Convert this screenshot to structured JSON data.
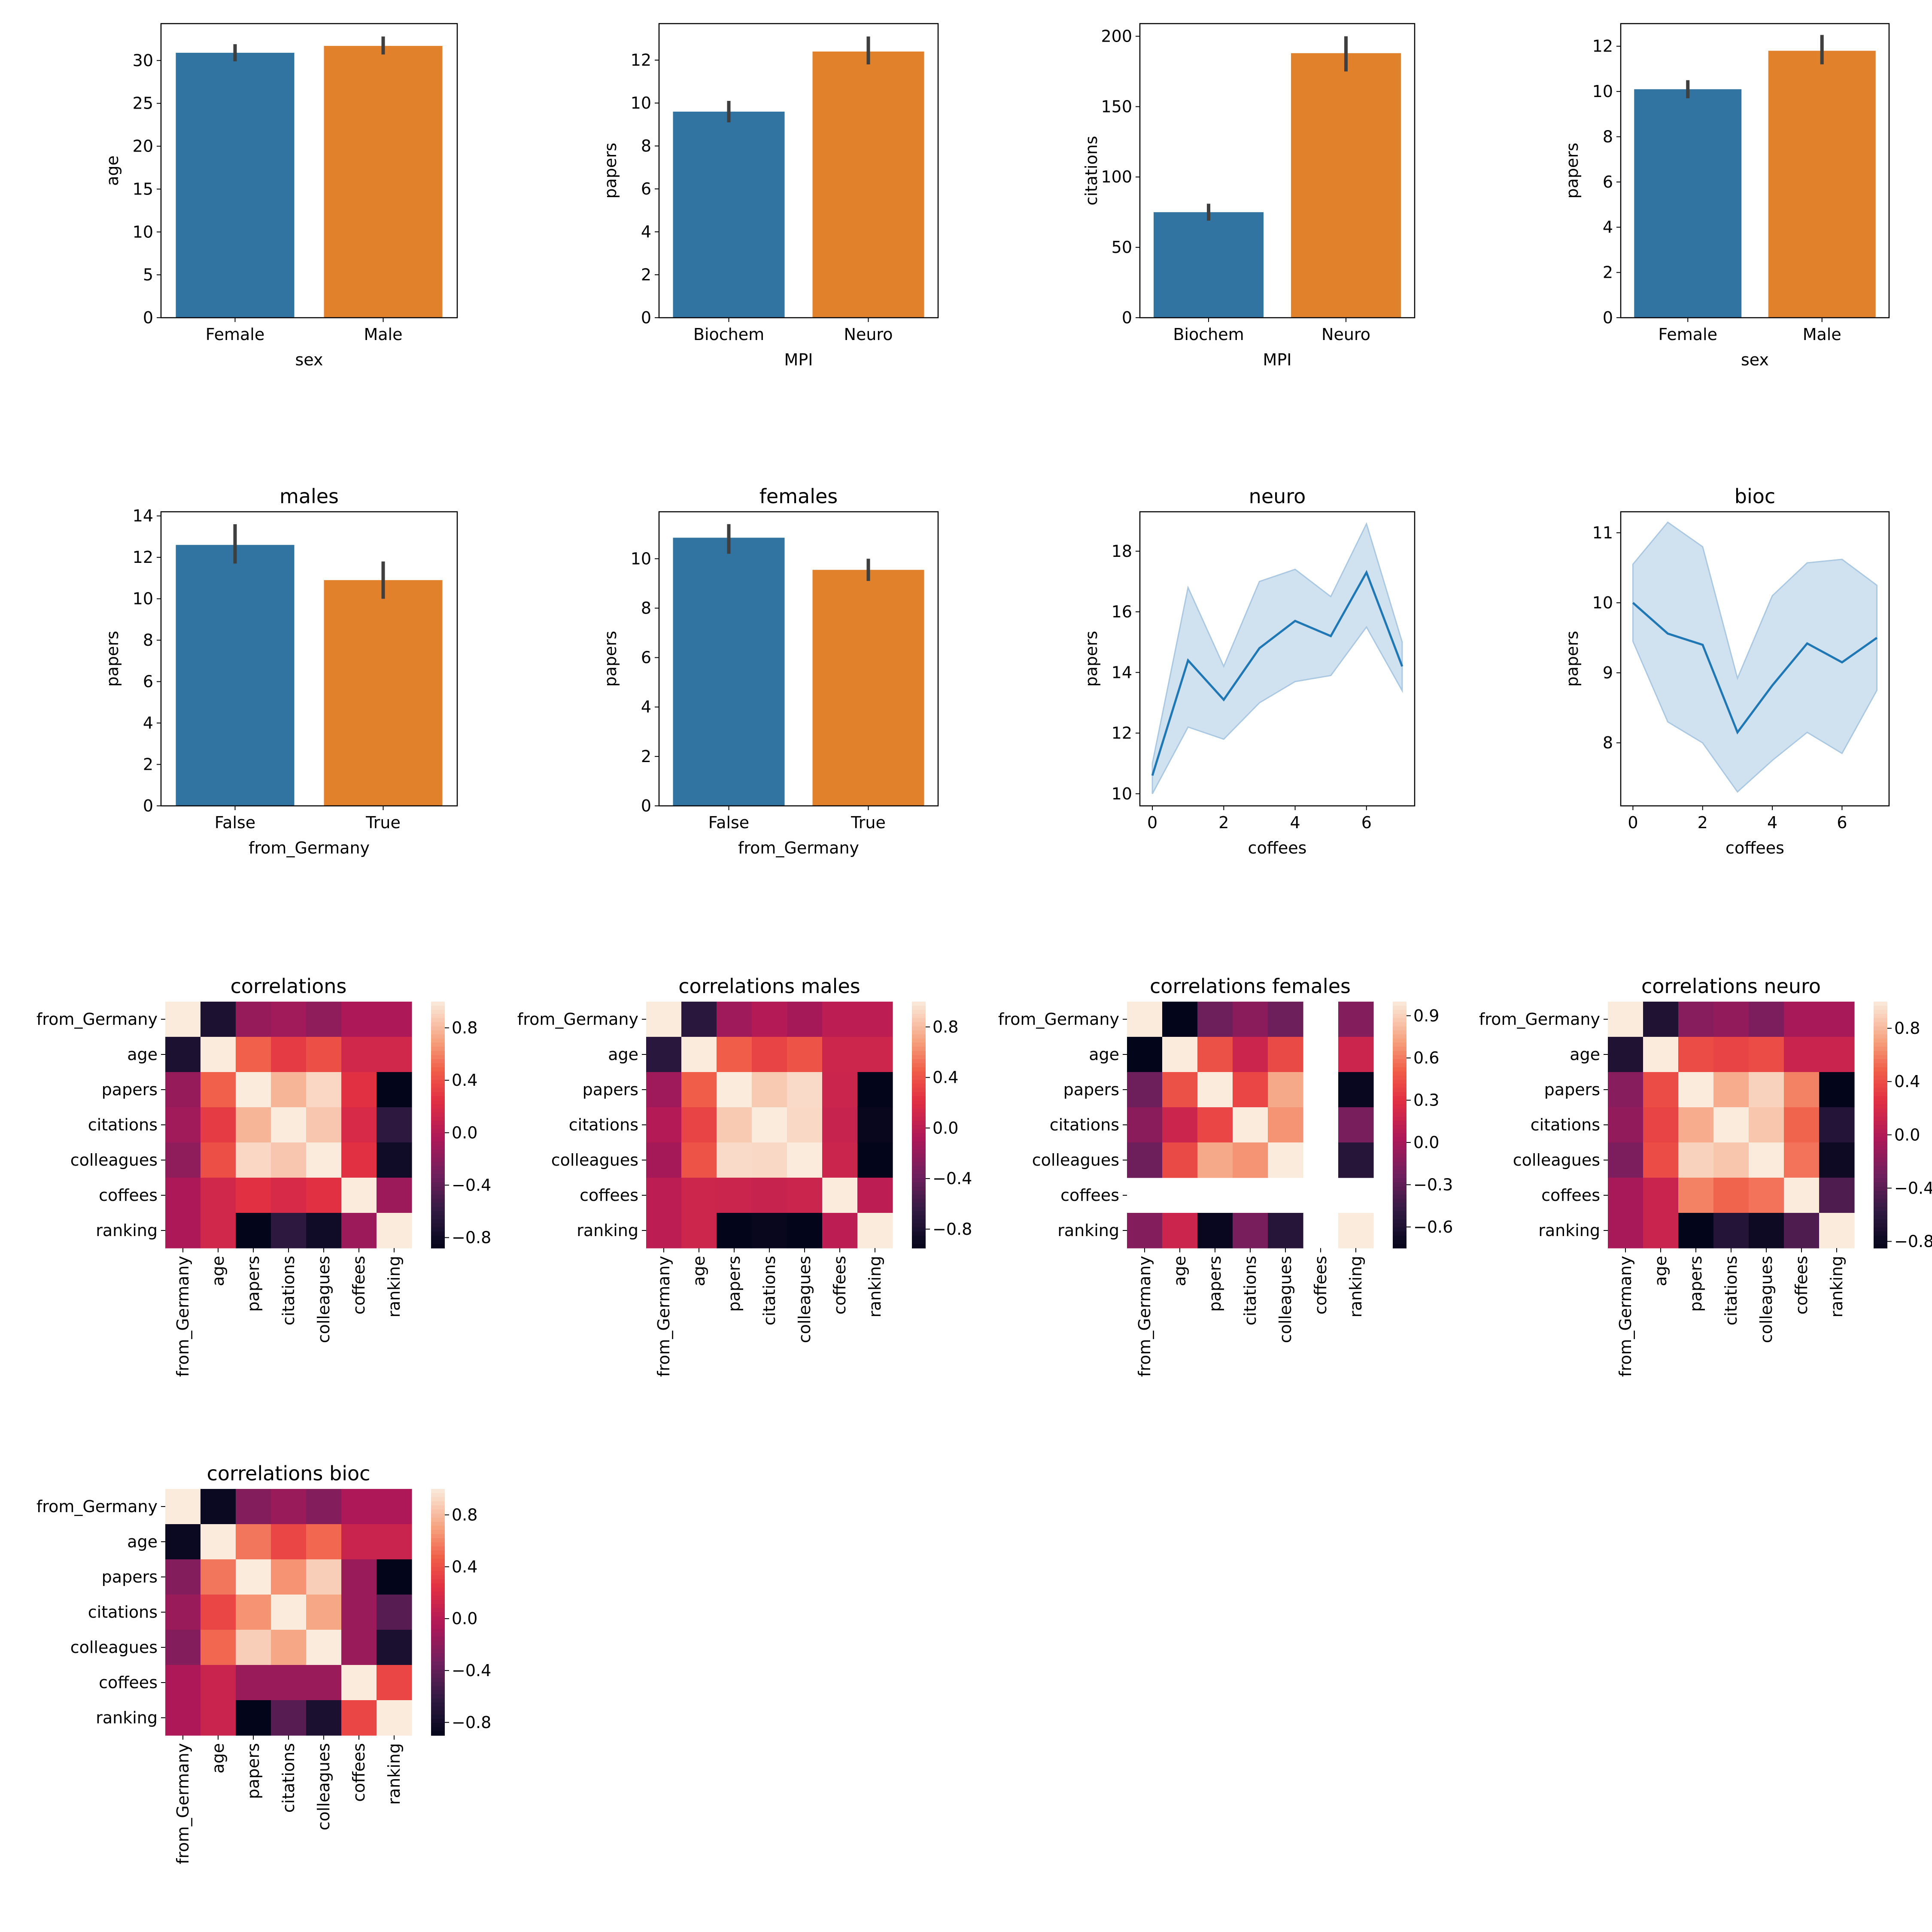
{
  "colors": {
    "blue": "#3274a1",
    "orange": "#e1812c",
    "line": "#1f77b4",
    "band": "#aac8e1",
    "errbar": "#3f3f3f",
    "palette": "rocket"
  },
  "chart_data": [
    {
      "id": "bar-age-sex",
      "type": "bar",
      "title": "",
      "xlabel": "sex",
      "ylabel": "age",
      "categories": [
        "Female",
        "Male"
      ],
      "values": [
        30.9,
        31.7
      ],
      "error_low": [
        29.9,
        30.7
      ],
      "error_high": [
        31.9,
        32.8
      ],
      "ylim": [
        0,
        34.3
      ],
      "yticks": [
        0,
        5,
        10,
        15,
        20,
        25,
        30
      ]
    },
    {
      "id": "bar-papers-mpi",
      "type": "bar",
      "title": "",
      "xlabel": "MPI",
      "ylabel": "papers",
      "categories": [
        "Biochem",
        "Neuro"
      ],
      "values": [
        9.6,
        12.4
      ],
      "error_low": [
        9.1,
        11.8
      ],
      "error_high": [
        10.1,
        13.1
      ],
      "ylim": [
        0,
        13.7
      ],
      "yticks": [
        0,
        2,
        4,
        6,
        8,
        10,
        12
      ]
    },
    {
      "id": "bar-citations-mpi",
      "type": "bar",
      "title": "",
      "xlabel": "MPI",
      "ylabel": "citations",
      "categories": [
        "Biochem",
        "Neuro"
      ],
      "values": [
        75,
        188
      ],
      "error_low": [
        69,
        175
      ],
      "error_high": [
        81,
        200
      ],
      "ylim": [
        0,
        209
      ],
      "yticks": [
        0,
        50,
        100,
        150,
        200
      ]
    },
    {
      "id": "bar-papers-sex",
      "type": "bar",
      "title": "",
      "xlabel": "sex",
      "ylabel": "papers",
      "categories": [
        "Female",
        "Male"
      ],
      "values": [
        10.1,
        11.8
      ],
      "error_low": [
        9.7,
        11.2
      ],
      "error_high": [
        10.5,
        12.5
      ],
      "ylim": [
        0,
        13.0
      ],
      "yticks": [
        0,
        2,
        4,
        6,
        8,
        10,
        12
      ]
    },
    {
      "id": "bar-males",
      "type": "bar",
      "title": "males",
      "xlabel": "from_Germany",
      "ylabel": "papers",
      "categories": [
        "False",
        "True"
      ],
      "values": [
        12.6,
        10.9
      ],
      "error_low": [
        11.7,
        10.0
      ],
      "error_high": [
        13.6,
        11.8
      ],
      "ylim": [
        0,
        14.2
      ],
      "yticks": [
        0,
        2,
        4,
        6,
        8,
        10,
        12,
        14
      ]
    },
    {
      "id": "bar-females",
      "type": "bar",
      "title": "females",
      "xlabel": "from_Germany",
      "ylabel": "papers",
      "categories": [
        "False",
        "True"
      ],
      "values": [
        10.85,
        9.55
      ],
      "error_low": [
        10.2,
        9.1
      ],
      "error_high": [
        11.4,
        10.0
      ],
      "ylim": [
        0,
        11.9
      ],
      "yticks": [
        0,
        2,
        4,
        6,
        8,
        10
      ]
    },
    {
      "id": "line-neuro",
      "type": "line",
      "title": "neuro",
      "xlabel": "coffees",
      "ylabel": "papers",
      "x": [
        0,
        1,
        2,
        3,
        4,
        5,
        6,
        7
      ],
      "y": [
        10.6,
        14.4,
        13.1,
        14.8,
        15.7,
        15.2,
        17.3,
        14.2
      ],
      "ci_low": [
        10.0,
        12.2,
        11.8,
        13.0,
        13.7,
        13.9,
        15.5,
        13.4
      ],
      "ci_high": [
        11.0,
        16.8,
        14.2,
        17.0,
        17.4,
        16.5,
        18.9,
        15.0
      ],
      "xlim": [
        -0.35,
        7.35
      ],
      "ylim": [
        9.6,
        19.3
      ],
      "xticks": [
        0,
        2,
        4,
        6
      ],
      "yticks": [
        10,
        12,
        14,
        16,
        18
      ]
    },
    {
      "id": "line-bioc",
      "type": "line",
      "title": "bioc",
      "xlabel": "coffees",
      "ylabel": "papers",
      "x": [
        0,
        1,
        2,
        3,
        4,
        5,
        6,
        7
      ],
      "y": [
        10.0,
        9.56,
        9.4,
        8.15,
        8.82,
        9.42,
        9.15,
        9.5
      ],
      "ci_low": [
        9.45,
        8.3,
        8.0,
        7.3,
        7.75,
        8.15,
        7.85,
        8.75
      ],
      "ci_high": [
        10.55,
        11.15,
        10.8,
        8.92,
        10.1,
        10.57,
        10.62,
        10.25
      ],
      "xlim": [
        -0.35,
        7.35
      ],
      "ylim": [
        7.1,
        11.3
      ],
      "xticks": [
        0,
        2,
        4,
        6
      ],
      "yticks": [
        8,
        9,
        10,
        11
      ]
    },
    {
      "id": "heat-all",
      "type": "heatmap",
      "title": "correlations",
      "labels": [
        "from_Germany",
        "age",
        "papers",
        "citations",
        "colleagues",
        "coffees",
        "ranking"
      ],
      "vmin": -0.88,
      "vmax": 1.0,
      "cbar_ticks": [
        -0.8,
        -0.4,
        0.0,
        0.4,
        0.8
      ],
      "matrix": [
        [
          1.0,
          -0.72,
          -0.15,
          -0.1,
          -0.18,
          -0.05,
          -0.05
        ],
        [
          -0.72,
          1.0,
          0.48,
          0.3,
          0.4,
          0.15,
          0.15
        ],
        [
          -0.15,
          0.48,
          1.0,
          0.78,
          0.92,
          0.25,
          -0.88
        ],
        [
          -0.1,
          0.3,
          0.78,
          1.0,
          0.85,
          0.18,
          -0.62
        ],
        [
          -0.18,
          0.4,
          0.92,
          0.85,
          1.0,
          0.25,
          -0.8
        ],
        [
          -0.05,
          0.15,
          0.25,
          0.18,
          0.25,
          1.0,
          -0.12
        ],
        [
          -0.05,
          0.15,
          -0.88,
          -0.62,
          -0.8,
          -0.12,
          1.0
        ]
      ]
    },
    {
      "id": "heat-males",
      "type": "heatmap",
      "title": "correlations males",
      "labels": [
        "from_Germany",
        "age",
        "papers",
        "citations",
        "colleagues",
        "coffees",
        "ranking"
      ],
      "vmin": -0.95,
      "vmax": 1.0,
      "cbar_ticks": [
        -0.8,
        -0.4,
        0.0,
        0.4,
        0.8
      ],
      "matrix": [
        [
          1.0,
          -0.7,
          -0.15,
          -0.05,
          -0.12,
          0.0,
          0.0
        ],
        [
          -0.7,
          1.0,
          0.45,
          0.32,
          0.4,
          0.1,
          0.1
        ],
        [
          -0.15,
          0.45,
          1.0,
          0.86,
          0.93,
          0.08,
          -0.95
        ],
        [
          -0.05,
          0.32,
          0.86,
          1.0,
          0.92,
          0.06,
          -0.92
        ],
        [
          -0.12,
          0.4,
          0.93,
          0.92,
          1.0,
          0.08,
          -0.95
        ],
        [
          0.0,
          0.1,
          0.08,
          0.06,
          0.08,
          1.0,
          0.0
        ],
        [
          0.0,
          0.1,
          -0.95,
          -0.92,
          -0.95,
          0.0,
          1.0
        ]
      ]
    },
    {
      "id": "heat-females",
      "type": "heatmap",
      "title": "correlations females",
      "labels": [
        "from_Germany",
        "age",
        "papers",
        "citations",
        "colleagues",
        "coffees",
        "ranking"
      ],
      "vmin": -0.75,
      "vmax": 1.0,
      "cbar_ticks": [
        -0.6,
        -0.3,
        0.0,
        0.3,
        0.6,
        0.9
      ],
      "matrix": [
        [
          1.0,
          -0.75,
          -0.25,
          -0.12,
          -0.25,
          null,
          -0.15
        ],
        [
          -0.75,
          1.0,
          0.45,
          0.18,
          0.42,
          null,
          0.18
        ],
        [
          -0.25,
          0.45,
          1.0,
          0.4,
          0.75,
          null,
          -0.72
        ],
        [
          -0.12,
          0.18,
          0.4,
          1.0,
          0.68,
          null,
          -0.2
        ],
        [
          -0.25,
          0.42,
          0.75,
          0.68,
          1.0,
          null,
          -0.55
        ],
        [
          null,
          null,
          null,
          null,
          null,
          null,
          null
        ],
        [
          -0.15,
          0.18,
          -0.72,
          -0.2,
          -0.55,
          null,
          1.0
        ]
      ]
    },
    {
      "id": "heat-neuro",
      "type": "heatmap",
      "title": "correlations neuro",
      "labels": [
        "from_Germany",
        "age",
        "papers",
        "citations",
        "colleagues",
        "coffees",
        "ranking"
      ],
      "vmin": -0.85,
      "vmax": 1.0,
      "cbar_ticks": [
        -0.8,
        -0.4,
        0.0,
        0.4,
        0.8
      ],
      "matrix": [
        [
          1.0,
          -0.68,
          -0.2,
          -0.15,
          -0.25,
          -0.05,
          -0.05
        ],
        [
          -0.68,
          1.0,
          0.4,
          0.35,
          0.4,
          0.12,
          0.12
        ],
        [
          -0.2,
          0.4,
          1.0,
          0.75,
          0.9,
          0.6,
          -0.85
        ],
        [
          -0.15,
          0.35,
          0.75,
          1.0,
          0.85,
          0.5,
          -0.65
        ],
        [
          -0.25,
          0.4,
          0.9,
          0.85,
          1.0,
          0.55,
          -0.78
        ],
        [
          -0.05,
          0.12,
          0.6,
          0.5,
          0.55,
          1.0,
          -0.45
        ],
        [
          -0.05,
          0.12,
          -0.85,
          -0.65,
          -0.78,
          -0.45,
          1.0
        ]
      ]
    },
    {
      "id": "heat-bioc",
      "type": "heatmap",
      "title": "correlations bioc",
      "labels": [
        "from_Germany",
        "age",
        "papers",
        "citations",
        "colleagues",
        "coffees",
        "ranking"
      ],
      "vmin": -0.9,
      "vmax": 1.0,
      "cbar_ticks": [
        -0.8,
        -0.4,
        0.0,
        0.4,
        0.8
      ],
      "matrix": [
        [
          1.0,
          -0.85,
          -0.25,
          -0.15,
          -0.25,
          -0.05,
          -0.05
        ],
        [
          -0.85,
          1.0,
          0.55,
          0.35,
          0.5,
          0.1,
          0.1
        ],
        [
          -0.25,
          0.55,
          1.0,
          0.65,
          0.88,
          -0.15,
          -0.9
        ],
        [
          -0.15,
          0.35,
          0.65,
          1.0,
          0.72,
          -0.15,
          -0.45
        ],
        [
          -0.25,
          0.5,
          0.88,
          0.72,
          1.0,
          -0.15,
          -0.75
        ],
        [
          -0.05,
          0.1,
          -0.15,
          -0.15,
          -0.15,
          1.0,
          0.35
        ],
        [
          -0.05,
          0.1,
          -0.9,
          -0.45,
          -0.75,
          0.35,
          1.0
        ]
      ]
    }
  ]
}
